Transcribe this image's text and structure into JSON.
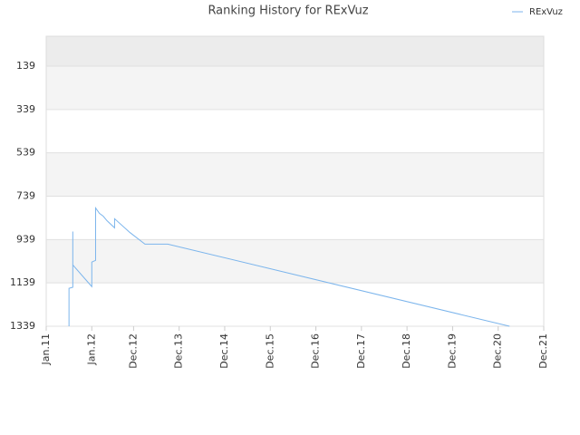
{
  "chart_data": {
    "type": "line",
    "title": "Ranking History for RExVuz",
    "x": [
      "2011-07",
      "2011-07",
      "2011-08",
      "2011-08",
      "2011-08",
      "2011-08",
      "2011-08",
      "2012-01",
      "2012-01",
      "2012-02",
      "2012-02",
      "2012-02",
      "2012-02",
      "2012-03",
      "2012-04",
      "2012-05",
      "2012-07",
      "2012-07",
      "2012-11",
      "2013-03",
      "2013-09",
      "2021-03"
    ],
    "series": [
      {
        "name": "RExVuz",
        "color": "#7cb5ec",
        "values": [
          1339,
          1164,
          1159,
          1139,
          902,
          981,
          1056,
          1156,
          1043,
          1035,
          898,
          848,
          793,
          818,
          831,
          852,
          885,
          843,
          906,
          960,
          960,
          1339
        ]
      }
    ],
    "xlim": [
      "2011-01",
      "2021-12"
    ],
    "xticks": [
      {
        "value": "2011-01",
        "label": "Jan.11"
      },
      {
        "value": "2012-01",
        "label": "Jan.12"
      },
      {
        "value": "2012-12",
        "label": "Dec.12"
      },
      {
        "value": "2013-12",
        "label": "Dec.13"
      },
      {
        "value": "2014-12",
        "label": "Dec.14"
      },
      {
        "value": "2015-12",
        "label": "Dec.15"
      },
      {
        "value": "2016-12",
        "label": "Dec.16"
      },
      {
        "value": "2017-12",
        "label": "Dec.17"
      },
      {
        "value": "2018-12",
        "label": "Dec.18"
      },
      {
        "value": "2019-12",
        "label": "Dec.19"
      },
      {
        "value": "2020-12",
        "label": "Dec.20"
      },
      {
        "value": "2021-12",
        "label": "Dec.21"
      }
    ],
    "ylim": [
      1339,
      1
    ],
    "yticks": [
      139,
      339,
      539,
      739,
      939,
      1139,
      1339
    ],
    "grid": true,
    "legend": "top-right"
  }
}
